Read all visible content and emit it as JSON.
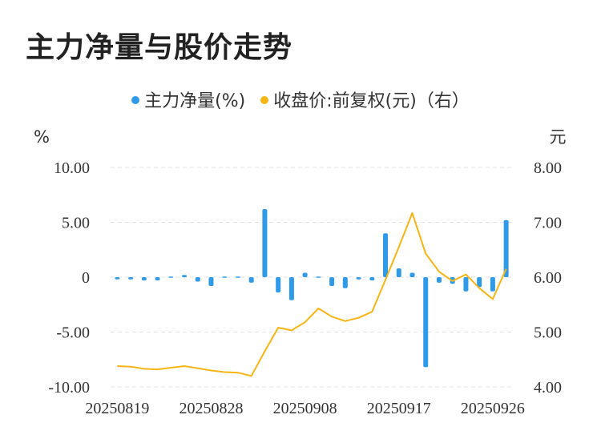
{
  "title": "主力净量与股价走势",
  "colors": {
    "bar": "#2f9be8",
    "line": "#f5b515",
    "grid": "#e3e3e3",
    "axis_text": "#333333"
  },
  "chart_data": {
    "type": "bar+line",
    "legend": [
      {
        "name": "主力净量(%)",
        "color": "#2f9be8"
      },
      {
        "name": "收盘价:前复权(元)（右）",
        "color": "#f5b515"
      }
    ],
    "legend_position": "top-center",
    "grid": true,
    "left_axis": {
      "unit": "%",
      "ylim": [
        -10,
        10
      ],
      "ticks": [
        10,
        5,
        0,
        -5,
        -10
      ],
      "tick_labels": [
        "10.00",
        "5.00",
        "0",
        "-5.00",
        "-10.00"
      ]
    },
    "right_axis": {
      "unit": "元",
      "ylim": [
        4,
        8
      ],
      "ticks": [
        8,
        7,
        6,
        5,
        4
      ],
      "tick_labels": [
        "8.00",
        "7.00",
        "6.00",
        "5.00",
        "4.00"
      ]
    },
    "x_tick_labels": [
      "20250819",
      "20250828",
      "20250908",
      "20250917",
      "20250926"
    ],
    "x_tick_index": [
      0,
      7,
      14,
      21,
      28
    ],
    "series": [
      {
        "name": "主力净量(%)",
        "type": "bar",
        "axis": "left",
        "values": [
          -0.2,
          -0.2,
          -0.3,
          -0.3,
          -0.05,
          0.2,
          -0.4,
          -0.8,
          -0.1,
          -0.05,
          -0.5,
          6.2,
          -1.4,
          -2.1,
          0.4,
          0.1,
          -0.8,
          -1.0,
          -0.2,
          -0.3,
          4.0,
          0.8,
          0.4,
          -8.2,
          -0.5,
          -0.6,
          -1.3,
          -0.9,
          -1.3,
          5.2
        ]
      },
      {
        "name": "收盘价:前复权(元)（右）",
        "type": "line",
        "axis": "right",
        "values": [
          4.38,
          4.37,
          4.33,
          4.32,
          4.35,
          4.38,
          4.34,
          4.3,
          4.27,
          4.26,
          4.2,
          4.65,
          5.08,
          5.03,
          5.18,
          5.43,
          5.28,
          5.2,
          5.26,
          5.37,
          5.95,
          6.55,
          7.17,
          6.43,
          6.1,
          5.93,
          6.05,
          5.8,
          5.6,
          6.15
        ]
      }
    ]
  }
}
